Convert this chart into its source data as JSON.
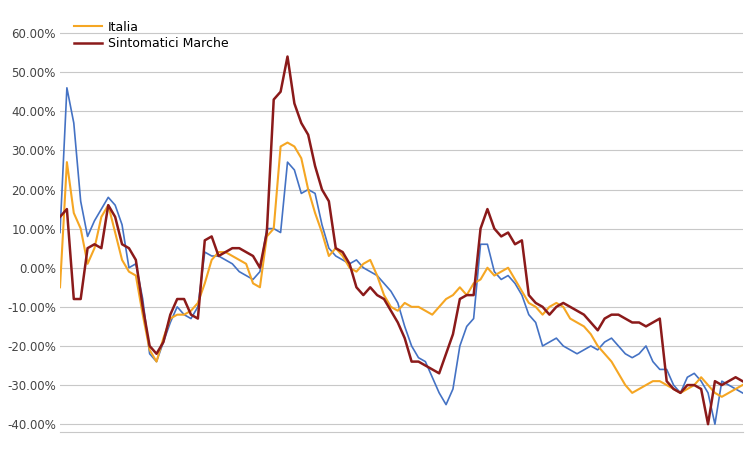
{
  "legend": [
    "Italia",
    "Sintomatici Marche"
  ],
  "colors": {
    "italia": "#F5A623",
    "sintomatici": "#8B1A1A",
    "blue": "#4472C4"
  },
  "ylim": [
    -0.42,
    0.65
  ],
  "yticks": [
    -0.4,
    -0.3,
    -0.2,
    -0.1,
    0.0,
    0.1,
    0.2,
    0.3,
    0.4,
    0.5,
    0.6
  ],
  "background": "#FFFFFF",
  "grid_color": "#C8C8C8",
  "italia": [
    -0.05,
    0.27,
    0.14,
    0.1,
    0.01,
    0.05,
    0.13,
    0.16,
    0.09,
    0.02,
    -0.01,
    -0.02,
    -0.12,
    -0.21,
    -0.24,
    -0.18,
    -0.13,
    -0.12,
    -0.12,
    -0.11,
    -0.09,
    -0.04,
    0.02,
    0.04,
    0.04,
    0.03,
    0.02,
    0.01,
    -0.04,
    -0.05,
    0.08,
    0.1,
    0.31,
    0.32,
    0.31,
    0.28,
    0.2,
    0.14,
    0.09,
    0.03,
    0.05,
    0.03,
    0.0,
    -0.01,
    0.01,
    0.02,
    -0.02,
    -0.07,
    -0.1,
    -0.11,
    -0.09,
    -0.1,
    -0.1,
    -0.11,
    -0.12,
    -0.1,
    -0.08,
    -0.07,
    -0.05,
    -0.07,
    -0.04,
    -0.03,
    0.0,
    -0.02,
    -0.01,
    0.0,
    -0.03,
    -0.06,
    -0.09,
    -0.1,
    -0.12,
    -0.1,
    -0.09,
    -0.1,
    -0.13,
    -0.14,
    -0.15,
    -0.17,
    -0.2,
    -0.22,
    -0.24,
    -0.27,
    -0.3,
    -0.32,
    -0.31,
    -0.3,
    -0.29,
    -0.29,
    -0.3,
    -0.31,
    -0.32,
    -0.31,
    -0.3,
    -0.28,
    -0.3,
    -0.32,
    -0.33,
    -0.32,
    -0.31,
    -0.3
  ],
  "sintomatici": [
    0.13,
    0.15,
    -0.08,
    -0.08,
    0.05,
    0.06,
    0.05,
    0.16,
    0.13,
    0.06,
    0.05,
    0.02,
    -0.1,
    -0.2,
    -0.22,
    -0.19,
    -0.12,
    -0.08,
    -0.08,
    -0.12,
    -0.13,
    0.07,
    0.08,
    0.03,
    0.04,
    0.05,
    0.05,
    0.04,
    0.03,
    0.0,
    0.09,
    0.43,
    0.45,
    0.54,
    0.42,
    0.37,
    0.34,
    0.26,
    0.2,
    0.17,
    0.05,
    0.04,
    0.01,
    -0.05,
    -0.07,
    -0.05,
    -0.07,
    -0.08,
    -0.11,
    -0.14,
    -0.18,
    -0.24,
    -0.24,
    -0.25,
    -0.26,
    -0.27,
    -0.22,
    -0.17,
    -0.08,
    -0.07,
    -0.07,
    0.1,
    0.15,
    0.1,
    0.08,
    0.09,
    0.06,
    0.07,
    -0.07,
    -0.09,
    -0.1,
    -0.12,
    -0.1,
    -0.09,
    -0.1,
    -0.11,
    -0.12,
    -0.14,
    -0.16,
    -0.13,
    -0.12,
    -0.12,
    -0.13,
    -0.14,
    -0.14,
    -0.15,
    -0.14,
    -0.13,
    -0.29,
    -0.31,
    -0.32,
    -0.3,
    -0.3,
    -0.31,
    -0.4,
    -0.29,
    -0.3,
    -0.29,
    -0.28,
    -0.29
  ],
  "blue": [
    0.09,
    0.46,
    0.37,
    0.17,
    0.08,
    0.12,
    0.15,
    0.18,
    0.16,
    0.11,
    0.0,
    0.01,
    -0.08,
    -0.22,
    -0.24,
    -0.19,
    -0.14,
    -0.1,
    -0.12,
    -0.13,
    -0.1,
    0.04,
    0.03,
    0.03,
    0.02,
    0.01,
    -0.01,
    -0.02,
    -0.03,
    -0.01,
    0.1,
    0.1,
    0.09,
    0.27,
    0.25,
    0.19,
    0.2,
    0.19,
    0.11,
    0.05,
    0.03,
    0.02,
    0.01,
    0.02,
    0.0,
    -0.01,
    -0.02,
    -0.04,
    -0.06,
    -0.09,
    -0.15,
    -0.2,
    -0.23,
    -0.24,
    -0.28,
    -0.32,
    -0.35,
    -0.31,
    -0.2,
    -0.15,
    -0.13,
    0.06,
    0.06,
    -0.01,
    -0.03,
    -0.02,
    -0.04,
    -0.07,
    -0.12,
    -0.14,
    -0.2,
    -0.19,
    -0.18,
    -0.2,
    -0.21,
    -0.22,
    -0.21,
    -0.2,
    -0.21,
    -0.19,
    -0.18,
    -0.2,
    -0.22,
    -0.23,
    -0.22,
    -0.2,
    -0.24,
    -0.26,
    -0.26,
    -0.3,
    -0.32,
    -0.28,
    -0.27,
    -0.29,
    -0.32,
    -0.4,
    -0.29,
    -0.3,
    -0.31,
    -0.32
  ],
  "figsize": [
    7.5,
    4.5
  ],
  "dpi": 100
}
